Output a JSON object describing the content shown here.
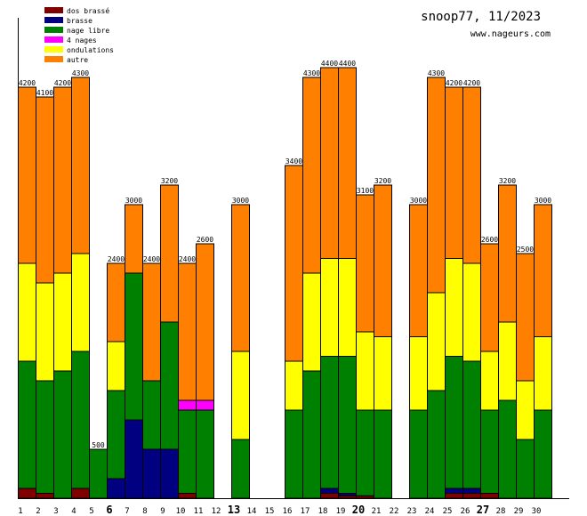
{
  "chart_data": {
    "type": "bar",
    "stacked": true,
    "title": "snoop77, 11/2023",
    "subtitle": "www.nageurs.com",
    "xlabel": "",
    "ylabel": "",
    "ylim": [
      0,
      4900
    ],
    "grid": false,
    "legend_position": "top-left",
    "categories": [
      "1",
      "2",
      "3",
      "4",
      "5",
      "6",
      "7",
      "8",
      "9",
      "10",
      "11",
      "12",
      "13",
      "14",
      "15",
      "16",
      "17",
      "18",
      "19",
      "20",
      "21",
      "22",
      "23",
      "24",
      "25",
      "26",
      "27",
      "28",
      "29",
      "30"
    ],
    "bold_categories": [
      "6",
      "13",
      "20",
      "27"
    ],
    "totals": [
      4200,
      4100,
      4200,
      4300,
      500,
      2400,
      3000,
      2400,
      3200,
      2400,
      2600,
      0,
      3000,
      0,
      0,
      3400,
      4300,
      4400,
      4400,
      3100,
      3200,
      0,
      3000,
      4300,
      4200,
      4200,
      2600,
      3200,
      2500,
      3000
    ],
    "series": [
      {
        "name": "dos brassé",
        "color": "#800000",
        "values": [
          100,
          50,
          0,
          100,
          0,
          0,
          0,
          0,
          0,
          50,
          0,
          0,
          0,
          0,
          0,
          0,
          0,
          50,
          25,
          25,
          0,
          0,
          0,
          0,
          50,
          50,
          50,
          0,
          0,
          0
        ]
      },
      {
        "name": "brasse",
        "color": "#000080",
        "values": [
          0,
          0,
          0,
          0,
          0,
          200,
          800,
          500,
          500,
          0,
          0,
          0,
          0,
          0,
          0,
          0,
          0,
          50,
          25,
          0,
          0,
          0,
          0,
          0,
          50,
          50,
          0,
          0,
          0,
          0
        ]
      },
      {
        "name": "nage libre",
        "color": "#008000",
        "values": [
          1300,
          1150,
          1300,
          1400,
          500,
          900,
          1500,
          700,
          1300,
          850,
          900,
          0,
          600,
          0,
          0,
          900,
          1300,
          1350,
          1400,
          875,
          900,
          0,
          900,
          1100,
          1350,
          1300,
          850,
          1000,
          600,
          900
        ]
      },
      {
        "name": "4 nages",
        "color": "#ff00ff",
        "values": [
          0,
          0,
          0,
          0,
          0,
          0,
          0,
          0,
          0,
          100,
          100,
          0,
          0,
          0,
          0,
          0,
          0,
          0,
          0,
          0,
          0,
          0,
          0,
          0,
          0,
          0,
          0,
          0,
          0,
          0
        ]
      },
      {
        "name": "ondulations",
        "color": "#ffff00",
        "values": [
          1000,
          1000,
          1000,
          1000,
          0,
          500,
          0,
          0,
          0,
          0,
          0,
          0,
          900,
          0,
          0,
          500,
          1000,
          1000,
          1000,
          800,
          750,
          0,
          750,
          1000,
          1000,
          1000,
          600,
          800,
          600,
          750
        ]
      },
      {
        "name": "autre",
        "color": "#ff8000",
        "values": [
          1800,
          1900,
          1900,
          1800,
          0,
          800,
          700,
          1200,
          1400,
          1400,
          1600,
          0,
          1500,
          0,
          0,
          2000,
          2000,
          1950,
          1950,
          1400,
          1550,
          0,
          1350,
          2200,
          1750,
          1800,
          1100,
          1400,
          1300,
          1350
        ]
      }
    ]
  }
}
